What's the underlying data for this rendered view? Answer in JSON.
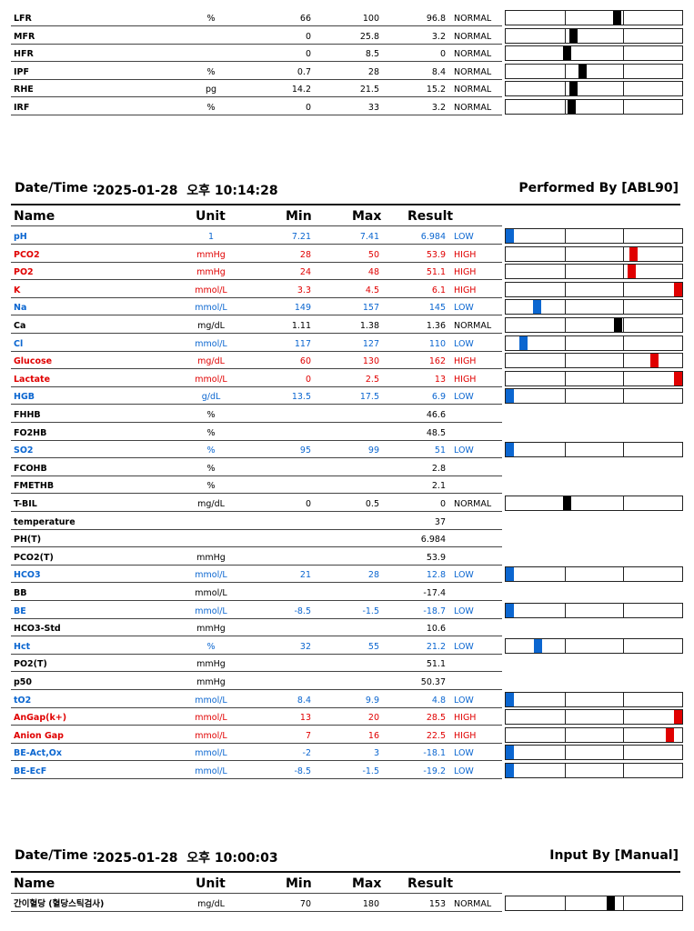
{
  "colors": {
    "high": "#e00000",
    "low": "#0b66d0",
    "normal": "#000000"
  },
  "top_rows": [
    {
      "name": "LFR",
      "unit": "%",
      "min": "66",
      "max": "100",
      "result": "96.8",
      "flag": "NORMAL",
      "level": 0.64,
      "status": "normal"
    },
    {
      "name": "MFR",
      "unit": "",
      "min": "0",
      "max": "25.8",
      "result": "3.2",
      "flag": "NORMAL",
      "level": 0.38,
      "status": "normal"
    },
    {
      "name": "HFR",
      "unit": "",
      "min": "0",
      "max": "8.5",
      "result": "0",
      "flag": "NORMAL",
      "level": 0.34,
      "status": "normal"
    },
    {
      "name": "IPF",
      "unit": "%",
      "min": "0.7",
      "max": "28",
      "result": "8.4",
      "flag": "NORMAL",
      "level": 0.43,
      "status": "normal"
    },
    {
      "name": "RHE",
      "unit": "pg",
      "min": "14.2",
      "max": "21.5",
      "result": "15.2",
      "flag": "NORMAL",
      "level": 0.38,
      "status": "normal"
    },
    {
      "name": "IRF",
      "unit": "%",
      "min": "0",
      "max": "33",
      "result": "3.2",
      "flag": "NORMAL",
      "level": 0.37,
      "status": "normal"
    }
  ],
  "sections": [
    {
      "datetime_label": "Date/Time :",
      "datetime": "2025-01-28  오후 10:14:28",
      "by": "Performed By [ABL90]",
      "headers": {
        "name": "Name",
        "unit": "Unit",
        "min": "Min",
        "max": "Max",
        "result": "Result"
      },
      "rows": [
        {
          "name": "pH",
          "unit": "1",
          "min": "7.21",
          "max": "7.41",
          "result": "6.984",
          "flag": "LOW",
          "level": 0.0,
          "status": "low"
        },
        {
          "name": "PCO2",
          "unit": "mmHg",
          "min": "28",
          "max": "50",
          "result": "53.9",
          "flag": "HIGH",
          "level": 0.735,
          "status": "high"
        },
        {
          "name": "PO2",
          "unit": "mmHg",
          "min": "24",
          "max": "48",
          "result": "51.1",
          "flag": "HIGH",
          "level": 0.725,
          "status": "high"
        },
        {
          "name": "K",
          "unit": "mmol/L",
          "min": "3.3",
          "max": "4.5",
          "result": "6.1",
          "flag": "HIGH",
          "level": 1.0,
          "status": "high"
        },
        {
          "name": "Na",
          "unit": "mmol/L",
          "min": "149",
          "max": "157",
          "result": "145",
          "flag": "LOW",
          "level": 0.16,
          "status": "low"
        },
        {
          "name": "Ca",
          "unit": "mg/dL",
          "min": "1.11",
          "max": "1.38",
          "result": "1.36",
          "flag": "NORMAL",
          "level": 0.645,
          "status": "normal"
        },
        {
          "name": "Cl",
          "unit": "mmol/L",
          "min": "117",
          "max": "127",
          "result": "110",
          "flag": "LOW",
          "level": 0.08,
          "status": "low"
        },
        {
          "name": "Glucose",
          "unit": "mg/dL",
          "min": "60",
          "max": "130",
          "result": "162",
          "flag": "HIGH",
          "level": 0.86,
          "status": "high"
        },
        {
          "name": "Lactate",
          "unit": "mmol/L",
          "min": "0",
          "max": "2.5",
          "result": "13",
          "flag": "HIGH",
          "level": 1.0,
          "status": "high"
        },
        {
          "name": "HGB",
          "unit": "g/dL",
          "min": "13.5",
          "max": "17.5",
          "result": "6.9",
          "flag": "LOW",
          "level": 0.0,
          "status": "low"
        },
        {
          "name": "FHHB",
          "unit": "%",
          "min": "",
          "max": "",
          "result": "46.6",
          "flag": "",
          "level": null,
          "status": "normal"
        },
        {
          "name": "FO2HB",
          "unit": "%",
          "min": "",
          "max": "",
          "result": "48.5",
          "flag": "",
          "level": null,
          "status": "normal"
        },
        {
          "name": "SO2",
          "unit": "%",
          "min": "95",
          "max": "99",
          "result": "51",
          "flag": "LOW",
          "level": 0.0,
          "status": "low"
        },
        {
          "name": "FCOHB",
          "unit": "%",
          "min": "",
          "max": "",
          "result": "2.8",
          "flag": "",
          "level": null,
          "status": "normal"
        },
        {
          "name": "FMETHB",
          "unit": "%",
          "min": "",
          "max": "",
          "result": "2.1",
          "flag": "",
          "level": null,
          "status": "normal"
        },
        {
          "name": "T-BIL",
          "unit": "mg/dL",
          "min": "0",
          "max": "0.5",
          "result": "0",
          "flag": "NORMAL",
          "level": 0.34,
          "status": "normal"
        },
        {
          "name": "temperature",
          "unit": "",
          "min": "",
          "max": "",
          "result": "37",
          "flag": "",
          "level": null,
          "status": "normal"
        },
        {
          "name": "PH(T)",
          "unit": "",
          "min": "",
          "max": "",
          "result": "6.984",
          "flag": "",
          "level": null,
          "status": "normal"
        },
        {
          "name": "PCO2(T)",
          "unit": "mmHg",
          "min": "",
          "max": "",
          "result": "53.9",
          "flag": "",
          "level": null,
          "status": "normal"
        },
        {
          "name": "HCO3",
          "unit": "mmol/L",
          "min": "21",
          "max": "28",
          "result": "12.8",
          "flag": "LOW",
          "level": 0.0,
          "status": "low"
        },
        {
          "name": "BB",
          "unit": "mmol/L",
          "min": "",
          "max": "",
          "result": "-17.4",
          "flag": "",
          "level": null,
          "status": "normal"
        },
        {
          "name": "BE",
          "unit": "mmol/L",
          "min": "-8.5",
          "max": "-1.5",
          "result": "-18.7",
          "flag": "LOW",
          "level": 0.0,
          "status": "low"
        },
        {
          "name": "HCO3-Std",
          "unit": "mmHg",
          "min": "",
          "max": "",
          "result": "10.6",
          "flag": "",
          "level": null,
          "status": "normal"
        },
        {
          "name": "Hct",
          "unit": "%",
          "min": "32",
          "max": "55",
          "result": "21.2",
          "flag": "LOW",
          "level": 0.165,
          "status": "low"
        },
        {
          "name": "PO2(T)",
          "unit": "mmHg",
          "min": "",
          "max": "",
          "result": "51.1",
          "flag": "",
          "level": null,
          "status": "normal"
        },
        {
          "name": "p50",
          "unit": "mmHg",
          "min": "",
          "max": "",
          "result": "50.37",
          "flag": "",
          "level": null,
          "status": "normal"
        },
        {
          "name": "tO2",
          "unit": "mmol/L",
          "min": "8.4",
          "max": "9.9",
          "result": "4.8",
          "flag": "LOW",
          "level": 0.0,
          "status": "low"
        },
        {
          "name": "AnGap(k+)",
          "unit": "mmol/L",
          "min": "13",
          "max": "20",
          "result": "28.5",
          "flag": "HIGH",
          "level": 1.0,
          "status": "high"
        },
        {
          "name": "Anion Gap",
          "unit": "mmol/L",
          "min": "7",
          "max": "16",
          "result": "22.5",
          "flag": "HIGH",
          "level": 0.95,
          "status": "high"
        },
        {
          "name": "BE-Act,Ox",
          "unit": "mmol/L",
          "min": "-2",
          "max": "3",
          "result": "-18.1",
          "flag": "LOW",
          "level": 0.0,
          "status": "low"
        },
        {
          "name": "BE-EcF",
          "unit": "mmol/L",
          "min": "-8.5",
          "max": "-1.5",
          "result": "-19.2",
          "flag": "LOW",
          "level": 0.0,
          "status": "low"
        }
      ]
    },
    {
      "datetime_label": "Date/Time :",
      "datetime": "2025-01-28  오후 10:00:03",
      "by": "Input By [Manual]",
      "headers": {
        "name": "Name",
        "unit": "Unit",
        "min": "Min",
        "max": "Max",
        "result": "Result"
      },
      "rows": [
        {
          "name": "간이혈당 (혈당스틱검사)",
          "unit": "mg/dL",
          "min": "70",
          "max": "180",
          "result": "153",
          "flag": "NORMAL",
          "level": 0.6,
          "status": "normal"
        }
      ]
    }
  ]
}
